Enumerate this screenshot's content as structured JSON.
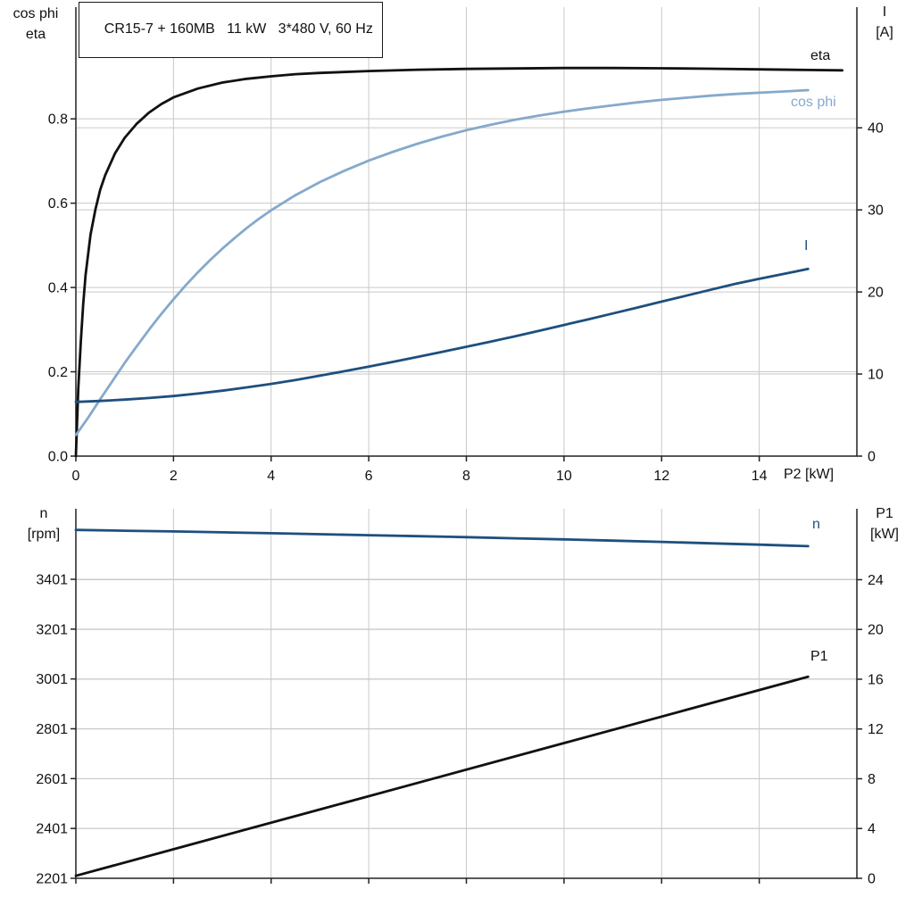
{
  "labels": {
    "top_left_line1": "cos phi",
    "top_left_line2": "eta",
    "top_right_line1": "I",
    "top_right_line2": "[A]",
    "bottom_left_line1": "n",
    "bottom_left_line2": "[rpm]",
    "bottom_right_line1": "P1",
    "bottom_right_line2": "[kW]"
  },
  "colors": {
    "curve_black": "#111111",
    "curve_light_blue": "#85a9cc",
    "curve_dark_blue": "#1e4f7e",
    "grid": "#c9c9c9",
    "axis": "#222222",
    "background": "#ffffff"
  },
  "chart_data": [
    {
      "type": "line",
      "title": "CR15-7 + 160MB   11 kW   3*480 V, 60 Hz",
      "xlabel": "P2 [kW]",
      "xlim": [
        0,
        16
      ],
      "x_ticks": [
        0,
        2,
        4,
        6,
        8,
        10,
        12,
        14
      ],
      "x_tick_labels": [
        "0",
        "2",
        "4",
        "6",
        "8",
        "10",
        "12",
        "14"
      ],
      "grid": true,
      "axes": {
        "left": {
          "label": "cos phi / eta",
          "lim": [
            0,
            1.065
          ],
          "ticks": [
            0,
            0.2,
            0.4,
            0.6,
            0.8
          ],
          "tick_labels": [
            "0.0",
            "0.2",
            "0.4",
            "0.6",
            "0.8"
          ]
        },
        "right": {
          "label": "I [A]",
          "lim": [
            0,
            54.7
          ],
          "ticks": [
            0,
            10,
            20,
            30,
            40
          ],
          "tick_labels": [
            "0",
            "10",
            "20",
            "30",
            "40"
          ]
        }
      },
      "series": [
        {
          "name": "eta",
          "axis": "left",
          "color": "#111111",
          "width": 2.8,
          "points": [
            [
              0,
              0
            ],
            [
              0.05,
              0.16
            ],
            [
              0.1,
              0.27
            ],
            [
              0.15,
              0.36
            ],
            [
              0.2,
              0.43
            ],
            [
              0.3,
              0.525
            ],
            [
              0.4,
              0.585
            ],
            [
              0.5,
              0.632
            ],
            [
              0.6,
              0.666
            ],
            [
              0.8,
              0.718
            ],
            [
              1,
              0.755
            ],
            [
              1.25,
              0.789
            ],
            [
              1.5,
              0.815
            ],
            [
              1.75,
              0.835
            ],
            [
              2,
              0.851
            ],
            [
              2.5,
              0.872
            ],
            [
              3,
              0.886
            ],
            [
              3.5,
              0.895
            ],
            [
              4,
              0.901
            ],
            [
              4.5,
              0.906
            ],
            [
              5,
              0.909
            ],
            [
              6,
              0.9135
            ],
            [
              7,
              0.9165
            ],
            [
              8,
              0.9185
            ],
            [
              9,
              0.9195
            ],
            [
              10,
              0.9205
            ],
            [
              11,
              0.9205
            ],
            [
              12,
              0.92
            ],
            [
              13,
              0.919
            ],
            [
              14,
              0.9175
            ],
            [
              15,
              0.916
            ],
            [
              15.7,
              0.915
            ]
          ]
        },
        {
          "name": "cos phi",
          "axis": "left",
          "color": "#85a9cc",
          "width": 2.8,
          "points": [
            [
              0,
              0.05
            ],
            [
              0.25,
              0.091
            ],
            [
              0.5,
              0.135
            ],
            [
              0.75,
              0.178
            ],
            [
              1,
              0.221
            ],
            [
              1.25,
              0.261
            ],
            [
              1.5,
              0.3
            ],
            [
              1.75,
              0.337
            ],
            [
              2,
              0.372
            ],
            [
              2.25,
              0.405
            ],
            [
              2.5,
              0.436
            ],
            [
              2.75,
              0.465
            ],
            [
              3,
              0.492
            ],
            [
              3.25,
              0.517
            ],
            [
              3.5,
              0.541
            ],
            [
              3.75,
              0.563
            ],
            [
              4,
              0.583
            ],
            [
              4.5,
              0.619
            ],
            [
              5,
              0.65
            ],
            [
              5.5,
              0.677
            ],
            [
              6,
              0.701
            ],
            [
              6.5,
              0.722
            ],
            [
              7,
              0.741
            ],
            [
              7.5,
              0.758
            ],
            [
              8,
              0.773
            ],
            [
              8.5,
              0.786
            ],
            [
              9,
              0.798
            ],
            [
              9.5,
              0.808
            ],
            [
              10,
              0.817
            ],
            [
              10.5,
              0.825
            ],
            [
              11,
              0.832
            ],
            [
              11.5,
              0.839
            ],
            [
              12,
              0.845
            ],
            [
              12.5,
              0.85
            ],
            [
              13,
              0.855
            ],
            [
              13.5,
              0.859
            ],
            [
              14,
              0.862
            ],
            [
              14.5,
              0.865
            ],
            [
              15,
              0.868
            ]
          ]
        },
        {
          "name": "I",
          "axis": "right",
          "color": "#1e4f7e",
          "width": 2.8,
          "points": [
            [
              0,
              6.6
            ],
            [
              0.5,
              6.72
            ],
            [
              1,
              6.88
            ],
            [
              1.5,
              7.08
            ],
            [
              2,
              7.32
            ],
            [
              2.5,
              7.62
            ],
            [
              3,
              7.97
            ],
            [
              3.5,
              8.37
            ],
            [
              4,
              8.8
            ],
            [
              4.5,
              9.28
            ],
            [
              5,
              9.8
            ],
            [
              5.5,
              10.34
            ],
            [
              6,
              10.9
            ],
            [
              6.5,
              11.48
            ],
            [
              7,
              12.08
            ],
            [
              7.5,
              12.7
            ],
            [
              8,
              13.32
            ],
            [
              8.5,
              13.95
            ],
            [
              9,
              14.6
            ],
            [
              9.5,
              15.28
            ],
            [
              10,
              15.97
            ],
            [
              10.5,
              16.67
            ],
            [
              11,
              17.38
            ],
            [
              11.5,
              18.1
            ],
            [
              12,
              18.82
            ],
            [
              12.5,
              19.54
            ],
            [
              13,
              20.26
            ],
            [
              13.5,
              20.98
            ],
            [
              14,
              21.6
            ],
            [
              14.5,
              22.2
            ],
            [
              15,
              22.8
            ]
          ]
        }
      ]
    },
    {
      "type": "line",
      "title": "",
      "xlabel": "",
      "xlim": [
        0,
        16
      ],
      "x_ticks": [
        0,
        2,
        4,
        6,
        8,
        10,
        12,
        14
      ],
      "grid": true,
      "axes": {
        "left": {
          "label": "n [rpm]",
          "lim": [
            2201,
            3684
          ],
          "ticks": [
            2201,
            2401,
            2601,
            2801,
            3001,
            3201,
            3401
          ],
          "tick_labels": [
            "2201",
            "2401",
            "2601",
            "2801",
            "3001",
            "3201",
            "3401"
          ]
        },
        "right": {
          "label": "P1 [kW]",
          "lim": [
            0,
            29.7
          ],
          "ticks": [
            0,
            4,
            8,
            12,
            16,
            20,
            24
          ],
          "tick_labels": [
            "0",
            "4",
            "8",
            "12",
            "16",
            "20",
            "24"
          ]
        }
      },
      "series": [
        {
          "name": "n",
          "axis": "left",
          "color": "#1e4f7e",
          "width": 2.8,
          "points": [
            [
              0,
              3599
            ],
            [
              1,
              3596
            ],
            [
              2,
              3593
            ],
            [
              3,
              3589.5
            ],
            [
              4,
              3586
            ],
            [
              5,
              3582
            ],
            [
              6,
              3578
            ],
            [
              7,
              3574
            ],
            [
              8,
              3570
            ],
            [
              9,
              3565.5
            ],
            [
              10,
              3561
            ],
            [
              11,
              3556
            ],
            [
              12,
              3551
            ],
            [
              13,
              3545.5
            ],
            [
              14,
              3540
            ],
            [
              15,
              3534
            ]
          ]
        },
        {
          "name": "P1",
          "axis": "right",
          "color": "#111111",
          "width": 2.8,
          "points": [
            [
              0,
              0.2
            ],
            [
              2.5,
              2.87
            ],
            [
              5,
              5.53
            ],
            [
              7.5,
              8.2
            ],
            [
              10,
              10.87
            ],
            [
              12.5,
              13.53
            ],
            [
              15,
              16.2
            ]
          ]
        }
      ]
    }
  ]
}
